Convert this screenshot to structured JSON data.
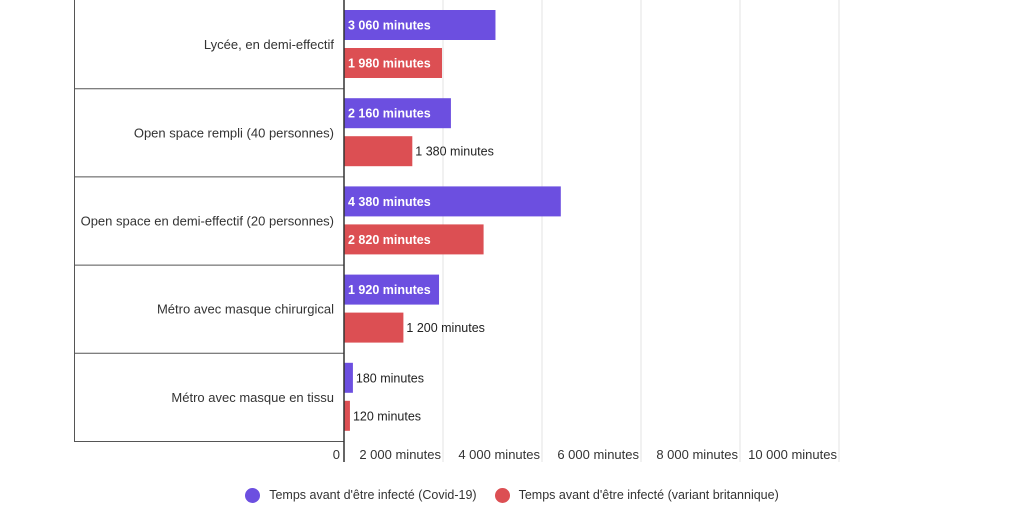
{
  "chart_data": {
    "type": "bar",
    "orientation": "horizontal",
    "categories": [
      "Lycée, en demi-effectif",
      "Open space rempli (40 personnes)",
      "Open space en demi-effectif (20 personnes)",
      "Métro avec masque chirurgical",
      "Métro avec masque en tissu"
    ],
    "series": [
      {
        "name": "Temps avant d'être infecté (Covid-19)",
        "color": "#6c4fe0",
        "values": [
          3060,
          2160,
          4380,
          1920,
          180
        ],
        "labels": [
          "3 060 minutes",
          "2 160 minutes",
          "4 380 minutes",
          "1 920 minutes",
          "180 minutes"
        ]
      },
      {
        "name": "Temps avant d'être infecté (variant britannique)",
        "color": "#dc4f53",
        "values": [
          1980,
          1380,
          2820,
          1200,
          120
        ],
        "labels": [
          "1 980 minutes",
          "1 380 minutes",
          "2 820 minutes",
          "1 200 minutes",
          "120 minutes"
        ]
      }
    ],
    "xlim": [
      0,
      10000
    ],
    "xticks": [
      0,
      2000,
      4000,
      6000,
      8000,
      10000
    ],
    "xtick_labels": [
      "0",
      "2 000 minutes",
      "4 000 minutes",
      "6 000 minutes",
      "8 000 minutes",
      "10 000 minutes"
    ],
    "grid": true,
    "legend_position": "bottom",
    "title": "",
    "xlabel": "",
    "ylabel": ""
  }
}
